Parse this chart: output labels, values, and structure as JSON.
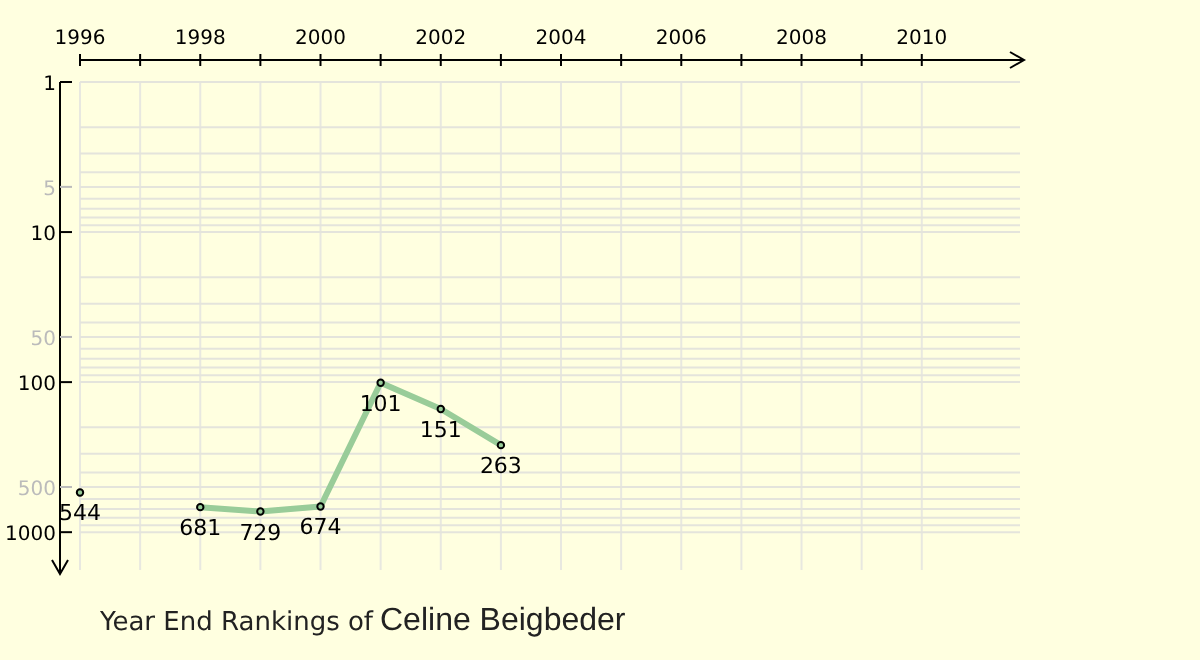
{
  "chart_data": {
    "type": "line",
    "title": "Year End Rankings of",
    "subtitle": "Celine Beigbeder",
    "x": [
      1996,
      1997,
      1998,
      1999,
      2000,
      2001,
      2002,
      2003
    ],
    "series": [
      {
        "color": "#99cc99",
        "values": [
          544,
          null,
          681,
          729,
          674,
          101,
          151,
          263
        ]
      }
    ],
    "data_labels": true,
    "log": true,
    "grid": true,
    "marker": "circle",
    "line_style": "solid",
    "xlim": [
      1996,
      2011.7
    ],
    "xticks": [
      1996,
      {
        "value": 1997,
        "label": null
      },
      1998,
      {
        "value": 1999,
        "label": null
      },
      2000,
      {
        "value": 2001,
        "label": null
      },
      2002,
      {
        "value": 2003,
        "label": null
      },
      2004,
      {
        "value": 2005,
        "label": null
      },
      2006,
      {
        "value": 2007,
        "label": null
      },
      2008,
      {
        "value": 2009,
        "label": null
      },
      2010
    ],
    "ylim": [
      1900,
      1
    ],
    "yticks": [
      1,
      {
        "value": 2,
        "label": null
      },
      {
        "value": 3,
        "label": null
      },
      {
        "value": 4,
        "label": null
      },
      5,
      {
        "value": 6,
        "label": null
      },
      {
        "value": 7,
        "label": null
      },
      {
        "value": 8,
        "label": null
      },
      {
        "value": 9,
        "label": null
      },
      10,
      {
        "value": 20,
        "label": null
      },
      {
        "value": 30,
        "label": null
      },
      {
        "value": 40,
        "label": null
      },
      50,
      {
        "value": 60,
        "label": null
      },
      {
        "value": 70,
        "label": null
      },
      {
        "value": 80,
        "label": null
      },
      {
        "value": 90,
        "label": null
      },
      100,
      {
        "value": 200,
        "label": null
      },
      {
        "value": 300,
        "label": null
      },
      {
        "value": 400,
        "label": null
      },
      500,
      {
        "value": 600,
        "label": null
      },
      {
        "value": 700,
        "label": null
      },
      {
        "value": 800,
        "label": null
      },
      {
        "value": 900,
        "label": null
      },
      1000
    ]
  }
}
